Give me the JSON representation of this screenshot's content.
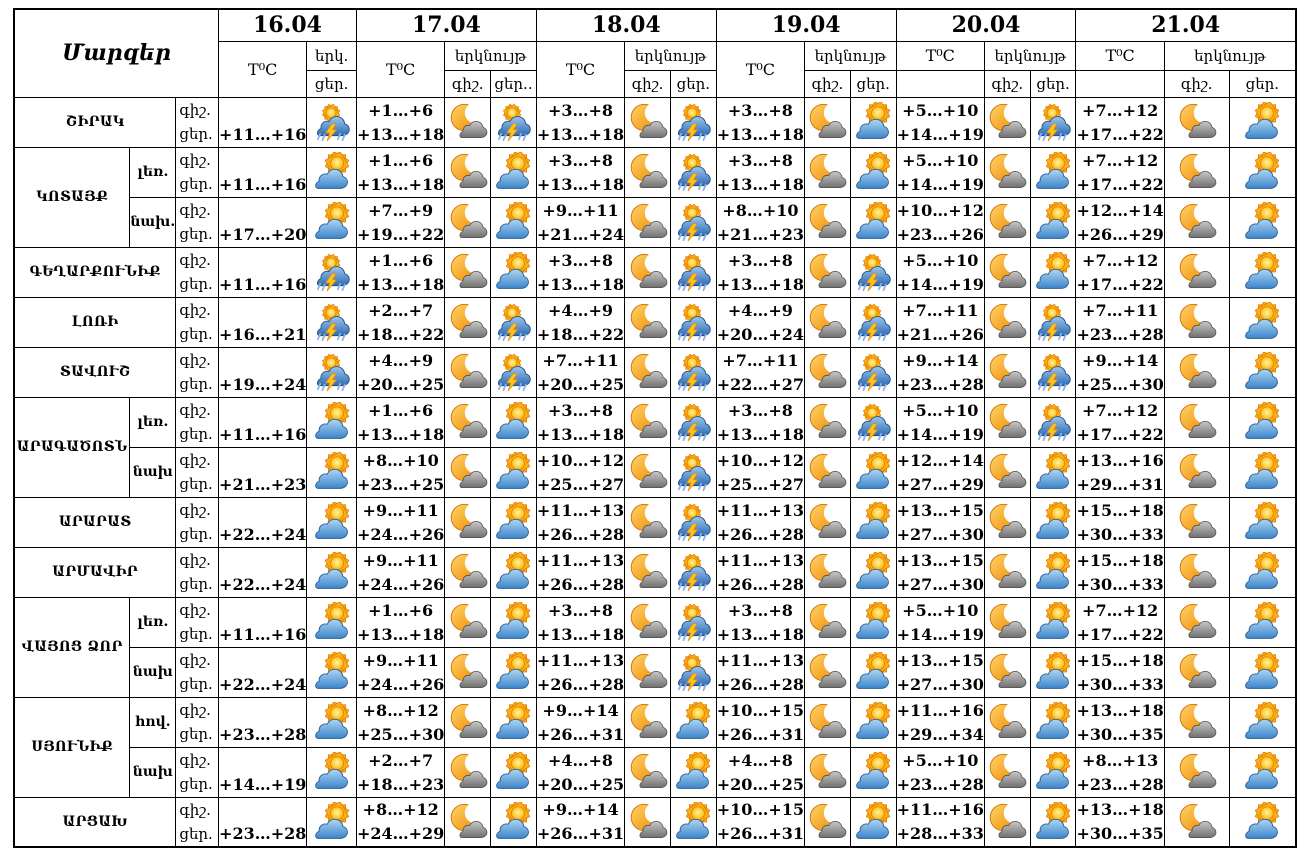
{
  "page": {
    "background": "#ffffff"
  },
  "colors": {
    "border": "#000000",
    "sun": "#f59d17",
    "day_cloud": "#4690d4",
    "storm_cloud": "#2e6cb5",
    "night_cloud": "#8a8a8a",
    "moon": "#f5a623",
    "lightning": "#ffc41a",
    "rain": "#8fb2e6"
  },
  "table": {
    "corner_label": "Մարզեր",
    "temp_header": "T⁰C",
    "sky_header": "երկնույթ",
    "night_label": "գիշ.",
    "day_label": "ցեր.",
    "icons": {
      "ts": "thunderstorm",
      "mc": "moon-cloud",
      "sc": "sun-cloud"
    },
    "columns": [
      {
        "date": "16.04",
        "style": "single",
        "icon_top": "երկ.",
        "icon_bottom": "ցեր.",
        "temp_spans": true
      },
      {
        "date": "17.04",
        "style": "double",
        "night": "գիշ.",
        "day": "ցեր..",
        "temp_spans": true
      },
      {
        "date": "18.04",
        "style": "double",
        "night": "գիշ.",
        "day": "ցեր.",
        "temp_spans": true
      },
      {
        "date": "19.04",
        "style": "double",
        "night": "գիշ.",
        "day": "ցեր.",
        "temp_spans": true
      },
      {
        "date": "20.04",
        "style": "double",
        "night": "գիշ.",
        "day": "ցեր.",
        "temp_spans": false
      },
      {
        "date": "21.04",
        "style": "double",
        "night": "գիշ.",
        "day": "ցեր.",
        "temp_spans": false
      }
    ],
    "regions": [
      {
        "name": "ՇԻՐԱԿ",
        "rows": [
          {
            "sub": null,
            "cells": [
              {
                "d": "+11…+16",
                "id": "ts"
              },
              {
                "n": "+1…+6",
                "d": "+13…+18",
                "in": "mc",
                "id": "ts"
              },
              {
                "n": "+3…+8",
                "d": "+13…+18",
                "in": "mc",
                "id": "ts"
              },
              {
                "n": "+3…+8",
                "d": "+13…+18",
                "in": "mc",
                "id": "sc"
              },
              {
                "n": "+5…+10",
                "d": "+14…+19",
                "in": "mc",
                "id": "ts"
              },
              {
                "n": "+7…+12",
                "d": "+17…+22",
                "in": "mc",
                "id": "sc"
              }
            ]
          }
        ]
      },
      {
        "name": "ԿՈՏԱՅՔ",
        "rows": [
          {
            "sub": "լեռ.",
            "cells": [
              {
                "d": "+11…+16",
                "id": "sc"
              },
              {
                "n": "+1…+6",
                "d": "+13…+18",
                "in": "mc",
                "id": "sc"
              },
              {
                "n": "+3…+8",
                "d": "+13…+18",
                "in": "mc",
                "id": "ts"
              },
              {
                "n": "+3…+8",
                "d": "+13…+18",
                "in": "mc",
                "id": "sc"
              },
              {
                "n": "+5…+10",
                "d": "+14…+19",
                "in": "mc",
                "id": "sc"
              },
              {
                "n": "+7…+12",
                "d": "+17…+22",
                "in": "mc",
                "id": "sc"
              }
            ]
          },
          {
            "sub": "նախ.",
            "cells": [
              {
                "d": "+17…+20",
                "id": "sc"
              },
              {
                "n": "+7…+9",
                "d": "+19…+22",
                "in": "mc",
                "id": "sc"
              },
              {
                "n": "+9…+11",
                "d": "+21…+24",
                "in": "mc",
                "id": "ts"
              },
              {
                "n": "+8…+10",
                "d": "+21…+23",
                "in": "mc",
                "id": "sc"
              },
              {
                "n": "+10…+12",
                "d": "+23…+26",
                "in": "mc",
                "id": "sc"
              },
              {
                "n": "+12…+14",
                "d": "+26…+29",
                "in": "mc",
                "id": "sc"
              }
            ]
          }
        ]
      },
      {
        "name": "ԳԵՂԱՐՔՈՒՆԻՔ",
        "rows": [
          {
            "sub": null,
            "cells": [
              {
                "d": "+11…+16",
                "id": "ts"
              },
              {
                "n": "+1…+6",
                "d": "+13…+18",
                "in": "mc",
                "id": "sc"
              },
              {
                "n": "+3…+8",
                "d": "+13…+18",
                "in": "mc",
                "id": "ts"
              },
              {
                "n": "+3…+8",
                "d": "+13…+18",
                "in": "mc",
                "id": "ts"
              },
              {
                "n": "+5…+10",
                "d": "+14…+19",
                "in": "mc",
                "id": "sc"
              },
              {
                "n": "+7…+12",
                "d": "+17…+22",
                "in": "mc",
                "id": "sc"
              }
            ]
          }
        ]
      },
      {
        "name": "ԼՈՌԻ",
        "rows": [
          {
            "sub": null,
            "cells": [
              {
                "d": "+16…+21",
                "id": "ts"
              },
              {
                "n": "+2…+7",
                "d": "+18…+22",
                "in": "mc",
                "id": "ts"
              },
              {
                "n": "+4…+9",
                "d": "+18…+22",
                "in": "mc",
                "id": "ts"
              },
              {
                "n": "+4…+9",
                "d": "+20…+24",
                "in": "mc",
                "id": "ts"
              },
              {
                "n": "+7…+11",
                "d": "+21…+26",
                "in": "mc",
                "id": "ts"
              },
              {
                "n": "+7…+11",
                "d": "+23…+28",
                "in": "mc",
                "id": "sc"
              }
            ]
          }
        ]
      },
      {
        "name": "ՏԱՎՈՒՇ",
        "rows": [
          {
            "sub": null,
            "cells": [
              {
                "d": "+19…+24",
                "id": "ts"
              },
              {
                "n": "+4…+9",
                "d": "+20…+25",
                "in": "mc",
                "id": "ts"
              },
              {
                "n": "+7…+11",
                "d": "+20…+25",
                "in": "mc",
                "id": "ts"
              },
              {
                "n": "+7…+11",
                "d": "+22…+27",
                "in": "mc",
                "id": "ts"
              },
              {
                "n": "+9…+14",
                "d": "+23…+28",
                "in": "mc",
                "id": "ts"
              },
              {
                "n": "+9…+14",
                "d": "+25…+30",
                "in": "mc",
                "id": "sc"
              }
            ]
          }
        ]
      },
      {
        "name": "ԱՐԱԳԱԾՈՏՆ",
        "rows": [
          {
            "sub": "լեռ.",
            "cells": [
              {
                "d": "+11…+16",
                "id": "sc"
              },
              {
                "n": "+1…+6",
                "d": "+13…+18",
                "in": "mc",
                "id": "sc"
              },
              {
                "n": "+3…+8",
                "d": "+13…+18",
                "in": "mc",
                "id": "ts"
              },
              {
                "n": "+3…+8",
                "d": "+13…+18",
                "in": "mc",
                "id": "ts"
              },
              {
                "n": "+5…+10",
                "d": "+14…+19",
                "in": "mc",
                "id": "ts"
              },
              {
                "n": "+7…+12",
                "d": "+17…+22",
                "in": "mc",
                "id": "sc"
              }
            ]
          },
          {
            "sub": "նախ",
            "cells": [
              {
                "d": "+21…+23",
                "id": "sc"
              },
              {
                "n": "+8…+10",
                "d": "+23…+25",
                "in": "mc",
                "id": "sc"
              },
              {
                "n": "+10…+12",
                "d": "+25…+27",
                "in": "mc",
                "id": "ts"
              },
              {
                "n": "+10…+12",
                "d": "+25…+27",
                "in": "mc",
                "id": "sc"
              },
              {
                "n": "+12…+14",
                "d": "+27…+29",
                "in": "mc",
                "id": "sc"
              },
              {
                "n": "+13…+16",
                "d": "+29…+31",
                "in": "mc",
                "id": "sc"
              }
            ]
          }
        ]
      },
      {
        "name": "ԱՐԱՐԱՏ",
        "rows": [
          {
            "sub": null,
            "cells": [
              {
                "d": "+22…+24",
                "id": "sc"
              },
              {
                "n": "+9…+11",
                "d": "+24…+26",
                "in": "mc",
                "id": "sc"
              },
              {
                "n": "+11…+13",
                "d": "+26…+28",
                "in": "mc",
                "id": "ts"
              },
              {
                "n": "+11…+13",
                "d": "+26…+28",
                "in": "mc",
                "id": "sc"
              },
              {
                "n": "+13…+15",
                "d": "+27…+30",
                "in": "mc",
                "id": "sc"
              },
              {
                "n": "+15…+18",
                "d": "+30…+33",
                "in": "mc",
                "id": "sc"
              }
            ]
          }
        ]
      },
      {
        "name": "ԱՐՄԱՎԻՐ",
        "rows": [
          {
            "sub": null,
            "cells": [
              {
                "d": "+22…+24",
                "id": "sc"
              },
              {
                "n": "+9…+11",
                "d": "+24…+26",
                "in": "mc",
                "id": "sc"
              },
              {
                "n": "+11…+13",
                "d": "+26…+28",
                "in": "mc",
                "id": "ts"
              },
              {
                "n": "+11…+13",
                "d": "+26…+28",
                "in": "mc",
                "id": "sc"
              },
              {
                "n": "+13…+15",
                "d": "+27…+30",
                "in": "mc",
                "id": "sc"
              },
              {
                "n": "+15…+18",
                "d": "+30…+33",
                "in": "mc",
                "id": "sc"
              }
            ]
          }
        ]
      },
      {
        "name": "ՎԱՅՈՑ ՁՈՐ",
        "rows": [
          {
            "sub": "լեռ.",
            "cells": [
              {
                "d": "+11…+16",
                "id": "sc"
              },
              {
                "n": "+1…+6",
                "d": "+13…+18",
                "in": "mc",
                "id": "sc"
              },
              {
                "n": "+3…+8",
                "d": "+13…+18",
                "in": "mc",
                "id": "ts"
              },
              {
                "n": "+3…+8",
                "d": "+13…+18",
                "in": "mc",
                "id": "sc"
              },
              {
                "n": "+5…+10",
                "d": "+14…+19",
                "in": "mc",
                "id": "sc"
              },
              {
                "n": "+7…+12",
                "d": "+17…+22",
                "in": "mc",
                "id": "sc"
              }
            ]
          },
          {
            "sub": "նախ",
            "cells": [
              {
                "d": "+22…+24",
                "id": "sc"
              },
              {
                "n": "+9…+11",
                "d": "+24…+26",
                "in": "mc",
                "id": "sc"
              },
              {
                "n": "+11…+13",
                "d": "+26…+28",
                "in": "mc",
                "id": "ts"
              },
              {
                "n": "+11…+13",
                "d": "+26…+28",
                "in": "mc",
                "id": "sc"
              },
              {
                "n": "+13…+15",
                "d": "+27…+30",
                "in": "mc",
                "id": "sc"
              },
              {
                "n": "+15…+18",
                "d": "+30…+33",
                "in": "mc",
                "id": "sc"
              }
            ]
          }
        ]
      },
      {
        "name": "ՍՅՈՒՆԻՔ",
        "rows": [
          {
            "sub": "հով.",
            "cells": [
              {
                "d": "+23…+28",
                "id": "sc"
              },
              {
                "n": "+8…+12",
                "d": "+25…+30",
                "in": "mc",
                "id": "sc"
              },
              {
                "n": "+9…+14",
                "d": "+26…+31",
                "in": "mc",
                "id": "sc"
              },
              {
                "n": "+10…+15",
                "d": "+26…+31",
                "in": "mc",
                "id": "sc"
              },
              {
                "n": "+11…+16",
                "d": "+29…+34",
                "in": "mc",
                "id": "sc"
              },
              {
                "n": "+13…+18",
                "d": "+30…+35",
                "in": "mc",
                "id": "sc"
              }
            ]
          },
          {
            "sub": "նախ",
            "cells": [
              {
                "d": "+14…+19",
                "id": "sc"
              },
              {
                "n": "+2…+7",
                "d": "+18…+23",
                "in": "mc",
                "id": "sc"
              },
              {
                "n": "+4…+8",
                "d": "+20…+25",
                "in": "mc",
                "id": "sc"
              },
              {
                "n": "+4…+8",
                "d": "+20…+25",
                "in": "mc",
                "id": "sc"
              },
              {
                "n": "+5…+10",
                "d": "+23…+28",
                "in": "mc",
                "id": "sc"
              },
              {
                "n": "+8…+13",
                "d": "+23…+28",
                "in": "mc",
                "id": "sc"
              }
            ]
          }
        ]
      },
      {
        "name": "ԱՐՑԱԽ",
        "rows": [
          {
            "sub": null,
            "cells": [
              {
                "d": "+23…+28",
                "id": "sc"
              },
              {
                "n": "+8…+12",
                "d": "+24…+29",
                "in": "mc",
                "id": "sc"
              },
              {
                "n": "+9…+14",
                "d": "+26…+31",
                "in": "mc",
                "id": "sc"
              },
              {
                "n": "+10…+15",
                "d": "+26…+31",
                "in": "mc",
                "id": "sc"
              },
              {
                "n": "+11…+16",
                "d": "+28…+33",
                "in": "mc",
                "id": "sc"
              },
              {
                "n": "+13…+18",
                "d": "+30…+35",
                "in": "mc",
                "id": "sc"
              }
            ]
          }
        ]
      }
    ]
  }
}
